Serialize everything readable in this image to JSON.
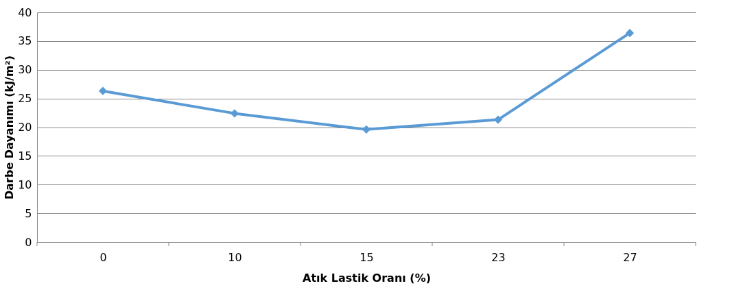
{
  "chart_data": {
    "type": "line",
    "xlabel": "Atık Lastik Oranı (%)",
    "ylabel": "Darbe Dayanımı (kJ/m²)",
    "categories": [
      "0",
      "10",
      "15",
      "23",
      "27"
    ],
    "series": [
      {
        "color": "#5b9bd5",
        "values": [
          26.3,
          22.4,
          19.6,
          21.3,
          36.4
        ]
      }
    ],
    "ylim": [
      0,
      40
    ],
    "yticks": [
      0,
      5,
      10,
      15,
      20,
      25,
      30,
      35,
      40
    ],
    "grid": "y",
    "marker": "diamond",
    "line_style": "solid",
    "legend": false
  }
}
